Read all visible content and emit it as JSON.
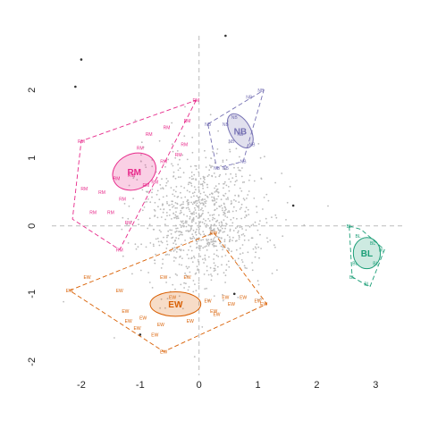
{
  "chart_data": {
    "type": "scatter",
    "title": "",
    "xlabel": "",
    "ylabel": "",
    "xlim": [
      -2.5,
      3.45
    ],
    "ylim": [
      -2.2,
      2.8
    ],
    "x_ticks": [
      {
        "v": -2,
        "label": "-2"
      },
      {
        "v": -1,
        "label": "-1"
      },
      {
        "v": 0,
        "label": "0"
      },
      {
        "v": 1,
        "label": "1"
      },
      {
        "v": 2,
        "label": "2"
      },
      {
        "v": 3,
        "label": "3"
      }
    ],
    "y_ticks": [
      {
        "v": -2,
        "label": "-2"
      },
      {
        "v": -1,
        "label": "-1"
      },
      {
        "v": 0,
        "label": "0"
      },
      {
        "v": 1,
        "label": "1"
      },
      {
        "v": 2,
        "label": "2"
      }
    ],
    "reference_lines": {
      "x": 0,
      "y": 0
    },
    "background_cloud": {
      "color": "#bbbbbb",
      "center": [
        0.05,
        0.1
      ],
      "spread": [
        0.55,
        0.5
      ]
    },
    "outliers": [
      {
        "x": 0.45,
        "y": 2.8
      },
      {
        "x": -2.0,
        "y": 2.45
      },
      {
        "x": -2.1,
        "y": 2.05
      },
      {
        "x": 1.6,
        "y": 0.3
      },
      {
        "x": -1.0,
        "y": -1.6
      },
      {
        "x": 0.6,
        "y": -1.0
      }
    ],
    "groups": [
      {
        "name": "RM",
        "color": "#e7298a",
        "ellipse": {
          "cx": -1.1,
          "cy": 0.8,
          "rx": 0.38,
          "ry": 0.26,
          "angle": 25
        },
        "hull": [
          [
            -0.05,
            1.85
          ],
          [
            -0.75,
            0.65
          ],
          [
            -1.35,
            -0.35
          ],
          [
            -2.15,
            0.1
          ],
          [
            -2.0,
            1.25
          ],
          [
            -0.05,
            1.85
          ]
        ],
        "points": [
          {
            "x": -2.0,
            "y": 1.25
          },
          {
            "x": -1.95,
            "y": 0.55
          },
          {
            "x": -1.8,
            "y": 0.2
          },
          {
            "x": -1.65,
            "y": 0.5
          },
          {
            "x": -1.5,
            "y": 0.2
          },
          {
            "x": -1.35,
            "y": -0.35
          },
          {
            "x": -1.3,
            "y": 0.4
          },
          {
            "x": -1.2,
            "y": 0.05
          },
          {
            "x": -1.15,
            "y": 0.75
          },
          {
            "x": -1.0,
            "y": 1.15
          },
          {
            "x": -0.9,
            "y": 0.6
          },
          {
            "x": -0.85,
            "y": 1.35
          },
          {
            "x": -0.75,
            "y": 0.65
          },
          {
            "x": -0.6,
            "y": 0.95
          },
          {
            "x": -0.55,
            "y": 1.45
          },
          {
            "x": -0.35,
            "y": 1.05
          },
          {
            "x": -0.25,
            "y": 1.2
          },
          {
            "x": -0.2,
            "y": 1.55
          },
          {
            "x": -0.05,
            "y": 1.85
          },
          {
            "x": -1.4,
            "y": 0.7
          }
        ]
      },
      {
        "name": "NB",
        "color": "#7570b3",
        "ellipse": {
          "cx": 0.7,
          "cy": 1.4,
          "rx": 0.32,
          "ry": 0.15,
          "angle": -60
        },
        "hull": [
          [
            0.15,
            1.5
          ],
          [
            1.1,
            2.0
          ],
          [
            0.75,
            0.95
          ],
          [
            0.3,
            0.85
          ],
          [
            0.15,
            1.5
          ]
        ],
        "points": [
          {
            "x": 0.15,
            "y": 1.5
          },
          {
            "x": 0.45,
            "y": 1.5
          },
          {
            "x": 0.6,
            "y": 1.6
          },
          {
            "x": 0.7,
            "y": 1.35
          },
          {
            "x": 0.85,
            "y": 1.9
          },
          {
            "x": 1.05,
            "y": 2.0
          },
          {
            "x": 0.9,
            "y": 1.2
          },
          {
            "x": 0.75,
            "y": 0.95
          },
          {
            "x": 0.55,
            "y": 1.25
          },
          {
            "x": 0.3,
            "y": 0.85
          },
          {
            "x": 0.45,
            "y": 0.85
          }
        ]
      },
      {
        "name": "BL",
        "color": "#1b9e77",
        "ellipse": {
          "cx": 2.85,
          "cy": -0.4,
          "rx": 0.23,
          "ry": 0.23,
          "angle": 0
        },
        "hull": [
          [
            2.55,
            0.0
          ],
          [
            2.75,
            -0.05
          ],
          [
            3.15,
            -0.35
          ],
          [
            2.9,
            -0.9
          ],
          [
            2.6,
            -0.75
          ],
          [
            2.55,
            0.0
          ]
        ],
        "points": [
          {
            "x": 2.55,
            "y": 0.0
          },
          {
            "x": 2.7,
            "y": -0.15
          },
          {
            "x": 2.65,
            "y": -0.55
          },
          {
            "x": 2.6,
            "y": -0.75
          },
          {
            "x": 2.85,
            "y": -0.85
          },
          {
            "x": 3.1,
            "y": -0.35
          },
          {
            "x": 3.0,
            "y": -0.55
          },
          {
            "x": 2.95,
            "y": -0.25
          }
        ]
      },
      {
        "name": "EW",
        "color": "#d95f02",
        "ellipse": {
          "cx": -0.4,
          "cy": -1.15,
          "rx": 0.43,
          "ry": 0.18,
          "angle": 0
        },
        "hull": [
          [
            0.25,
            -0.1
          ],
          [
            1.15,
            -1.15
          ],
          [
            -0.6,
            -1.85
          ],
          [
            -2.2,
            -0.95
          ],
          [
            0.25,
            -0.1
          ]
        ],
        "points": [
          {
            "x": -2.2,
            "y": -0.95
          },
          {
            "x": -1.9,
            "y": -0.75
          },
          {
            "x": -1.35,
            "y": -0.95
          },
          {
            "x": -1.25,
            "y": -1.25
          },
          {
            "x": -1.2,
            "y": -1.4
          },
          {
            "x": -1.05,
            "y": -1.5
          },
          {
            "x": -0.95,
            "y": -1.35
          },
          {
            "x": -0.75,
            "y": -1.6
          },
          {
            "x": -0.6,
            "y": -1.85
          },
          {
            "x": -0.6,
            "y": -0.75
          },
          {
            "x": -0.45,
            "y": -1.05
          },
          {
            "x": -0.2,
            "y": -0.75
          },
          {
            "x": -0.15,
            "y": -1.4
          },
          {
            "x": 0.15,
            "y": -1.1
          },
          {
            "x": 0.25,
            "y": -1.25
          },
          {
            "x": 0.45,
            "y": -1.05
          },
          {
            "x": 0.55,
            "y": -1.15
          },
          {
            "x": 0.75,
            "y": -1.05
          },
          {
            "x": 1.0,
            "y": -1.1
          },
          {
            "x": 1.1,
            "y": -1.15
          },
          {
            "x": 0.25,
            "y": -0.1
          },
          {
            "x": -0.65,
            "y": -1.45
          },
          {
            "x": 0.3,
            "y": -1.3
          }
        ]
      }
    ]
  }
}
